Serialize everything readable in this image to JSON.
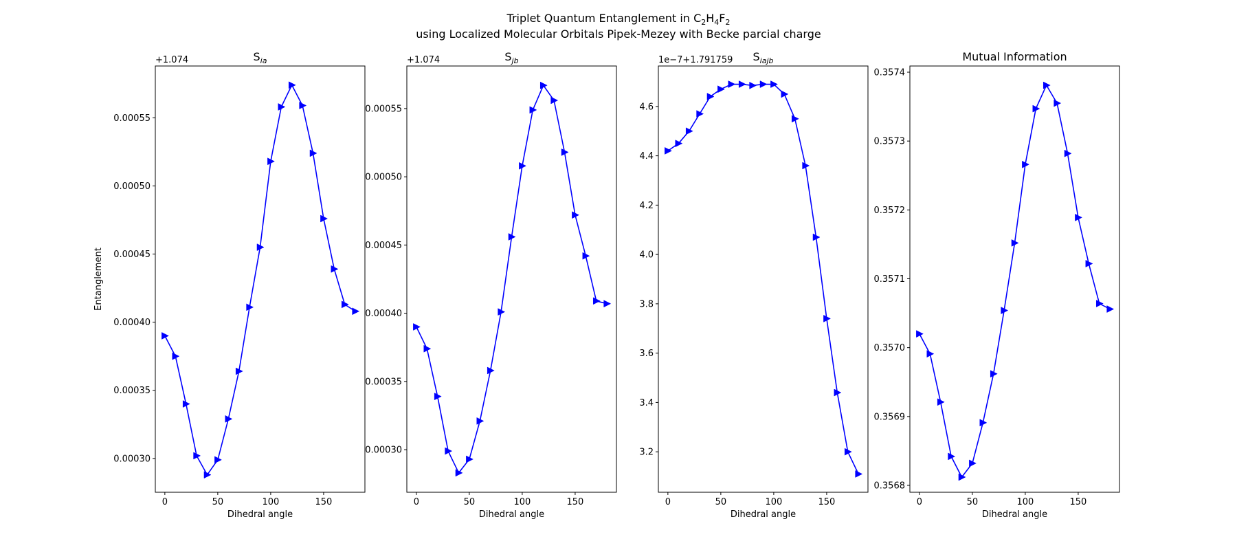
{
  "figure": {
    "title_line1_prefix": "Triplet Quantum Entanglement in C",
    "title_line1_sub1": "2",
    "title_line1_mid1": "H",
    "title_line1_sub2": "4",
    "title_line1_mid2": "F",
    "title_line1_sub3": "2",
    "title_line2": "using Localized Molecular Orbitals Pipek-Mezey with Becke parcial charge",
    "line_color": "#0000ff"
  },
  "chart_data": [
    {
      "type": "line",
      "title": "S",
      "title_sub": "ia",
      "xlabel": "Dihedral angle",
      "ylabel": "Entanglement",
      "offset_label": "+1.074",
      "marker": "triangle-right",
      "x": [
        0,
        10,
        20,
        30,
        40,
        50,
        60,
        70,
        80,
        90,
        100,
        110,
        120,
        130,
        140,
        150,
        160,
        170,
        180
      ],
      "y": [
        0.00039,
        0.000375,
        0.00034,
        0.000302,
        0.000288,
        0.000299,
        0.000329,
        0.000364,
        0.000411,
        0.000455,
        0.000518,
        0.000558,
        0.000574,
        0.000559,
        0.000524,
        0.000476,
        0.000439,
        0.000413,
        0.000408
      ],
      "xticks": [
        "0",
        "50",
        "100",
        "150"
      ],
      "xtick_values": [
        0,
        50,
        100,
        150
      ],
      "yticks": [
        "0.00030",
        "0.00035",
        "0.00040",
        "0.00045",
        "0.00050",
        "0.00055"
      ],
      "ytick_values": [
        0.0003,
        0.00035,
        0.0004,
        0.00045,
        0.0005,
        0.00055
      ],
      "xlim": [
        -9,
        189
      ],
      "ylim": [
        0.0002752,
        0.000588
      ]
    },
    {
      "type": "line",
      "title": "S",
      "title_sub": "jb",
      "xlabel": "Dihedral angle",
      "ylabel": "",
      "offset_label": "+1.074",
      "marker": "triangle-right",
      "x": [
        0,
        10,
        20,
        30,
        40,
        50,
        60,
        70,
        80,
        90,
        100,
        110,
        120,
        130,
        140,
        150,
        160,
        170,
        180
      ],
      "y": [
        0.00039,
        0.000374,
        0.000339,
        0.000299,
        0.000283,
        0.000293,
        0.000321,
        0.000358,
        0.000401,
        0.000456,
        0.000508,
        0.000549,
        0.000567,
        0.000556,
        0.000518,
        0.000472,
        0.000442,
        0.000409,
        0.000407
      ],
      "xticks": [
        "0",
        "50",
        "100",
        "150"
      ],
      "xtick_values": [
        0,
        50,
        100,
        150
      ],
      "yticks": [
        "0.00030",
        "0.00035",
        "0.00040",
        "0.00045",
        "0.00050",
        "0.00055"
      ],
      "ytick_values": [
        0.0003,
        0.00035,
        0.0004,
        0.00045,
        0.0005,
        0.00055
      ],
      "xlim": [
        -9,
        189
      ],
      "ylim": [
        0.0002688,
        0.0005812
      ]
    },
    {
      "type": "line",
      "title": "S",
      "title_sub": "iajb",
      "xlabel": "Dihedral angle",
      "ylabel": "",
      "offset_label": "1e−7+1.791759",
      "marker": "triangle-right",
      "x": [
        0,
        10,
        20,
        30,
        40,
        50,
        60,
        70,
        80,
        90,
        100,
        110,
        120,
        130,
        140,
        150,
        160,
        170,
        180
      ],
      "y": [
        4.42,
        4.45,
        4.5,
        4.57,
        4.64,
        4.67,
        4.69,
        4.69,
        4.685,
        4.69,
        4.69,
        4.65,
        4.55,
        4.36,
        4.07,
        3.74,
        3.44,
        3.2,
        3.11
      ],
      "xticks": [
        "0",
        "50",
        "100",
        "150"
      ],
      "xtick_values": [
        0,
        50,
        100,
        150
      ],
      "yticks": [
        "3.2",
        "3.4",
        "3.6",
        "3.8",
        "4.0",
        "4.2",
        "4.4",
        "4.6"
      ],
      "ytick_values": [
        3.2,
        3.4,
        3.6,
        3.8,
        4.0,
        4.2,
        4.4,
        4.6
      ],
      "xlim": [
        -9,
        189
      ],
      "ylim": [
        3.036,
        4.764
      ]
    },
    {
      "type": "line",
      "title": "Mutual Information",
      "title_sub": "",
      "xlabel": "Dihedral angle",
      "ylabel": "",
      "offset_label": "",
      "marker": "triangle-right",
      "x": [
        0,
        10,
        20,
        30,
        40,
        50,
        60,
        70,
        80,
        90,
        100,
        110,
        120,
        130,
        140,
        150,
        160,
        170,
        180
      ],
      "y": [
        0.35702,
        0.356991,
        0.356921,
        0.356842,
        0.356812,
        0.356832,
        0.356891,
        0.356962,
        0.357054,
        0.357152,
        0.357266,
        0.357347,
        0.357381,
        0.357355,
        0.357282,
        0.357189,
        0.357122,
        0.357064,
        0.357056
      ],
      "xticks": [
        "0",
        "50",
        "100",
        "150"
      ],
      "xtick_values": [
        0,
        50,
        100,
        150
      ],
      "yticks": [
        "0.3568",
        "0.3569",
        "0.3570",
        "0.3571",
        "0.3572",
        "0.3573",
        "0.3574"
      ],
      "ytick_values": [
        0.3568,
        0.3569,
        0.357,
        0.3571,
        0.3572,
        0.3573,
        0.3574
      ],
      "xlim": [
        -9,
        189
      ],
      "ylim": [
        0.35679,
        0.357409
      ]
    }
  ]
}
